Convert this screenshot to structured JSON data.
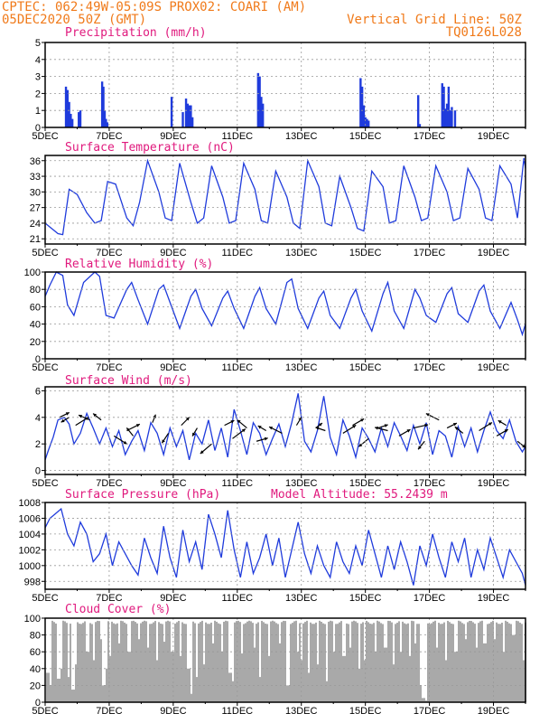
{
  "header": {
    "line1": "CPTEC:   062:49W-05:09S   PROX02: COARI (AM)",
    "line2_left": "05DEC2020 50Z (GMT)",
    "line2_right": "Vertical Grid Line: 50Z",
    "line3_right": "TQ0126L028"
  },
  "x_ticks": [
    "5DEC",
    "7DEC",
    "9DEC",
    "11DEC",
    "13DEC",
    "15DEC",
    "17DEC",
    "19DEC"
  ],
  "colors": {
    "header": "#f07a1a",
    "title": "#e0197d",
    "series": "#1f3bdc",
    "cloud": "#a9a9a9"
  },
  "chart_data": [
    {
      "type": "bar",
      "title": "Precipitation (mm/h)",
      "ylim": [
        0,
        5
      ],
      "yticks": [
        0,
        1,
        2,
        3,
        4,
        5
      ],
      "xlim": [
        5,
        20
      ],
      "x": [
        5.65,
        5.7,
        5.75,
        5.8,
        5.85,
        6.05,
        6.1,
        6.78,
        6.82,
        6.86,
        6.9,
        6.94,
        8.95,
        9.3,
        9.4,
        9.45,
        9.5,
        9.55,
        9.6,
        11.65,
        11.7,
        11.75,
        11.8,
        14.85,
        14.9,
        14.95,
        15.0,
        15.05,
        15.1,
        16.65,
        16.7,
        17.4,
        17.45,
        17.5,
        17.55,
        17.6,
        17.65,
        17.7,
        17.8
      ],
      "values": [
        2.4,
        2.2,
        1.5,
        0.8,
        0.5,
        0.9,
        1.0,
        2.7,
        2.4,
        1.0,
        0.5,
        0.3,
        1.8,
        0.9,
        1.7,
        1.4,
        1.3,
        1.3,
        0.6,
        3.2,
        3.0,
        1.8,
        1.4,
        2.9,
        2.4,
        1.3,
        0.6,
        0.5,
        0.4,
        1.9,
        0.2,
        2.6,
        2.4,
        1.1,
        1.4,
        2.4,
        1.0,
        1.2,
        1.0
      ],
      "grid": true
    },
    {
      "type": "line",
      "title": "Surface Temperature (nC)",
      "ylim": [
        20,
        37
      ],
      "yticks": [
        21,
        24,
        27,
        30,
        33,
        36
      ],
      "xlim": [
        5,
        20
      ],
      "x": [
        5.0,
        5.2,
        5.4,
        5.55,
        5.75,
        6.0,
        6.3,
        6.55,
        6.75,
        6.95,
        7.2,
        7.55,
        7.75,
        7.95,
        8.2,
        8.55,
        8.75,
        8.95,
        9.2,
        9.55,
        9.75,
        9.95,
        10.2,
        10.55,
        10.75,
        10.95,
        11.2,
        11.55,
        11.75,
        11.95,
        12.2,
        12.55,
        12.75,
        12.95,
        13.2,
        13.55,
        13.75,
        13.95,
        14.2,
        14.55,
        14.75,
        14.95,
        15.2,
        15.55,
        15.75,
        15.95,
        16.2,
        16.55,
        16.75,
        16.95,
        17.2,
        17.55,
        17.75,
        17.95,
        18.2,
        18.55,
        18.75,
        18.95,
        19.2,
        19.55,
        19.75,
        19.95,
        20.0
      ],
      "values": [
        24,
        23,
        22,
        21.8,
        30.5,
        29.5,
        26,
        24,
        24.5,
        32,
        31.5,
        25,
        23.5,
        28,
        36,
        30,
        25,
        24.5,
        35.5,
        28,
        24,
        25,
        35,
        29,
        24,
        24.5,
        35.5,
        30.5,
        24.5,
        24,
        34,
        29,
        24,
        23,
        36,
        31,
        24,
        23.5,
        33,
        27,
        23,
        22.5,
        34,
        31,
        24,
        24.5,
        35,
        29,
        24.5,
        25,
        35,
        30,
        24.5,
        25,
        34.5,
        30.5,
        25,
        24.5,
        35,
        31.5,
        25,
        36.5,
        34.5
      ],
      "grid": true
    },
    {
      "type": "line",
      "title": "Relative Humidity (%)",
      "ylim": [
        0,
        100
      ],
      "yticks": [
        0,
        20,
        40,
        60,
        80,
        100
      ],
      "xlim": [
        5,
        20
      ],
      "x": [
        5.0,
        5.15,
        5.35,
        5.55,
        5.7,
        5.9,
        6.2,
        6.55,
        6.7,
        6.9,
        7.15,
        7.55,
        7.7,
        7.9,
        8.2,
        8.55,
        8.7,
        8.9,
        9.2,
        9.55,
        9.7,
        9.9,
        10.2,
        10.55,
        10.7,
        10.9,
        11.2,
        11.55,
        11.7,
        11.9,
        12.2,
        12.55,
        12.7,
        12.9,
        13.2,
        13.55,
        13.7,
        13.9,
        14.2,
        14.55,
        14.7,
        14.9,
        15.2,
        15.55,
        15.7,
        15.9,
        16.2,
        16.55,
        16.7,
        16.9,
        17.2,
        17.55,
        17.7,
        17.9,
        18.2,
        18.55,
        18.7,
        18.9,
        19.2,
        19.55,
        19.75,
        19.9,
        20.0
      ],
      "values": [
        72,
        85,
        100,
        96,
        62,
        50,
        88,
        100,
        95,
        50,
        47,
        80,
        88,
        68,
        40,
        80,
        85,
        65,
        35,
        72,
        80,
        58,
        38,
        70,
        78,
        58,
        35,
        72,
        82,
        58,
        40,
        88,
        92,
        58,
        35,
        70,
        78,
        50,
        35,
        70,
        80,
        55,
        32,
        75,
        88,
        55,
        35,
        80,
        70,
        50,
        42,
        75,
        82,
        52,
        42,
        78,
        85,
        55,
        35,
        65,
        45,
        28,
        40
      ],
      "grid": true
    },
    {
      "type": "line",
      "title": "Surface Wind (m/s)",
      "ylim": [
        -0.3,
        6.3
      ],
      "yticks": [
        0,
        2,
        4,
        6
      ],
      "xlim": [
        5,
        20
      ],
      "x": [
        5.0,
        5.1,
        5.25,
        5.4,
        5.6,
        5.75,
        5.9,
        6.1,
        6.3,
        6.5,
        6.7,
        6.9,
        7.1,
        7.3,
        7.5,
        7.7,
        7.9,
        8.1,
        8.3,
        8.5,
        8.7,
        8.9,
        9.1,
        9.3,
        9.5,
        9.7,
        9.9,
        10.1,
        10.3,
        10.5,
        10.7,
        10.9,
        11.1,
        11.3,
        11.5,
        11.7,
        11.9,
        12.1,
        12.3,
        12.5,
        12.7,
        12.9,
        13.1,
        13.3,
        13.5,
        13.7,
        13.9,
        14.1,
        14.3,
        14.5,
        14.7,
        14.9,
        15.1,
        15.3,
        15.5,
        15.7,
        15.9,
        16.1,
        16.3,
        16.5,
        16.7,
        16.9,
        17.1,
        17.3,
        17.5,
        17.7,
        17.9,
        18.1,
        18.3,
        18.5,
        18.7,
        18.9,
        19.1,
        19.3,
        19.5,
        19.7,
        19.9,
        20.0
      ],
      "values": [
        0.8,
        1.5,
        2.5,
        3.8,
        4.0,
        3.5,
        2.0,
        2.8,
        4.3,
        3.2,
        2.0,
        3.2,
        1.8,
        3.0,
        1.2,
        2.2,
        3.0,
        1.5,
        3.6,
        2.8,
        1.2,
        3.2,
        1.8,
        3.0,
        0.8,
        2.8,
        2.0,
        3.8,
        1.5,
        3.2,
        1.0,
        4.6,
        3.0,
        1.2,
        3.6,
        2.8,
        1.2,
        2.4,
        3.5,
        1.8,
        3.6,
        5.8,
        2.2,
        1.4,
        3.0,
        5.6,
        2.5,
        1.2,
        3.8,
        2.6,
        1.0,
        3.2,
        2.4,
        1.4,
        3.2,
        1.8,
        3.6,
        2.6,
        1.5,
        3.4,
        2.0,
        3.6,
        1.2,
        3.0,
        2.6,
        1.0,
        3.3,
        1.8,
        3.2,
        1.4,
        3.0,
        4.4,
        3.0,
        2.4,
        3.8,
        2.2,
        1.4,
        1.8
      ],
      "arrows_x": [
        5.45,
        5.75,
        5.95,
        6.4,
        6.75,
        7.15,
        7.55,
        7.75,
        8.35,
        8.85,
        9.25,
        9.75,
        10.2,
        10.6,
        10.85,
        11.3,
        11.6,
        11.9,
        12.4,
        12.85,
        13.45,
        13.75,
        14.3,
        14.6,
        15.1,
        15.4,
        15.7,
        16.05,
        16.5,
        16.85,
        17.3,
        17.55,
        18.05,
        18.55,
        19.1,
        19.4,
        19.75
      ],
      "arrows_y": [
        4.0,
        4.0,
        3.4,
        3.8,
        3.8,
        2.6,
        3.0,
        2.6,
        3.6,
        2.8,
        3.4,
        3.2,
        2.0,
        3.4,
        2.4,
        3.2,
        2.2,
        3.0,
        2.8,
        3.4,
        3.2,
        3.0,
        2.8,
        3.4,
        2.4,
        3.2,
        3.0,
        2.6,
        3.2,
        2.2,
        3.8,
        3.2,
        2.8,
        3.0,
        2.6,
        3.4,
        2.2
      ],
      "arrows_u": [
        0.6,
        -0.5,
        0.8,
        -0.7,
        -0.5,
        0.8,
        0.8,
        -0.4,
        0.2,
        -0.4,
        0.5,
        -0.3,
        -0.7,
        0.6,
        0.8,
        -0.6,
        0.7,
        -0.5,
        -0.8,
        0.3,
        0.4,
        -0.6,
        0.8,
        0.7,
        -0.6,
        0.6,
        -0.8,
        0.7,
        0.9,
        -0.4,
        -0.8,
        0.6,
        -0.5,
        0.8,
        0.7,
        -0.5,
        0.5
      ],
      "arrows_v": [
        0.3,
        -0.3,
        0.5,
        0.3,
        0.4,
        -0.5,
        0.4,
        0.5,
        0.5,
        -0.6,
        0.5,
        -0.5,
        -0.6,
        0.3,
        0.6,
        0.5,
        0.2,
        0.3,
        0.4,
        0.5,
        0.3,
        0.2,
        0.5,
        0.4,
        -0.5,
        0.2,
        0.2,
        0.4,
        0.2,
        -0.5,
        0.4,
        0.3,
        0.4,
        0.5,
        0.4,
        0.3,
        -0.4
      ],
      "grid": true
    },
    {
      "type": "line",
      "title": "Surface Pressure (hPa)",
      "annotation": "Model Altitude: 55.2439 m",
      "ylim": [
        997,
        1008
      ],
      "yticks": [
        998,
        1000,
        1002,
        1004,
        1006,
        1008
      ],
      "xlim": [
        5,
        20
      ],
      "x": [
        5.0,
        5.15,
        5.3,
        5.5,
        5.7,
        5.9,
        6.1,
        6.3,
        6.5,
        6.7,
        6.9,
        7.1,
        7.3,
        7.5,
        7.7,
        7.9,
        8.1,
        8.3,
        8.5,
        8.7,
        8.9,
        9.1,
        9.3,
        9.5,
        9.7,
        9.9,
        10.1,
        10.3,
        10.5,
        10.7,
        10.9,
        11.1,
        11.3,
        11.5,
        11.7,
        11.9,
        12.1,
        12.3,
        12.5,
        12.7,
        12.9,
        13.1,
        13.3,
        13.5,
        13.7,
        13.9,
        14.1,
        14.3,
        14.5,
        14.7,
        14.9,
        15.1,
        15.3,
        15.5,
        15.7,
        15.9,
        16.1,
        16.3,
        16.5,
        16.7,
        16.9,
        17.1,
        17.3,
        17.5,
        17.7,
        17.9,
        18.1,
        18.3,
        18.5,
        18.7,
        18.9,
        19.1,
        19.3,
        19.5,
        19.7,
        19.9,
        20.0
      ],
      "values": [
        1004.8,
        1006.0,
        1006.5,
        1007.2,
        1004.0,
        1002.5,
        1005.5,
        1004.0,
        1000.5,
        1001.5,
        1004.0,
        1000.0,
        1003.0,
        1001.5,
        1000.0,
        998.8,
        1003.5,
        1001.0,
        999.0,
        1005.0,
        1001.0,
        998.5,
        1004.5,
        1000.5,
        1003.0,
        999.5,
        1006.5,
        1004.0,
        1001.0,
        1007.0,
        1002.0,
        998.5,
        1003.0,
        999.0,
        1001.0,
        1004.0,
        1000.0,
        1003.5,
        998.5,
        1002.0,
        1005.5,
        1001.5,
        999.0,
        1002.5,
        1000.0,
        998.5,
        1003.0,
        1000.5,
        999.0,
        1002.5,
        1000.0,
        1004.5,
        1001.5,
        998.5,
        1002.5,
        999.5,
        1003.0,
        1000.5,
        997.5,
        1002.5,
        1000.0,
        1004.0,
        1001.0,
        998.5,
        1003.0,
        1000.5,
        1003.5,
        998.5,
        1002.0,
        999.5,
        1003.5,
        1001.0,
        998.5,
        1002.0,
        1000.5,
        999.0,
        997.5
      ],
      "grid": true
    },
    {
      "type": "bar",
      "title": "Cloud Cover (%)",
      "ylim": [
        0,
        100
      ],
      "yticks": [
        0,
        20,
        40,
        60,
        80,
        100
      ],
      "xlim": [
        5,
        20
      ],
      "base_value": 95,
      "dips_x": [
        5.05,
        5.12,
        5.4,
        5.45,
        5.7,
        5.85,
        5.95,
        6.3,
        6.5,
        6.7,
        6.8,
        6.9,
        7.0,
        7.3,
        7.6,
        7.9,
        8.2,
        8.45,
        8.7,
        8.95,
        9.2,
        9.45,
        9.55,
        9.7,
        9.95,
        10.2,
        10.5,
        10.75,
        10.85,
        11.1,
        11.5,
        11.7,
        11.95,
        12.3,
        12.55,
        12.85,
        13.0,
        13.2,
        13.5,
        13.75,
        14.0,
        14.3,
        14.5,
        14.8,
        14.95,
        15.3,
        15.6,
        15.85,
        16.1,
        16.35,
        16.55,
        16.7,
        16.78,
        16.85,
        17.2,
        17.5,
        17.8,
        18.1,
        18.45,
        18.7,
        19.0,
        19.3,
        19.6,
        19.9
      ],
      "dips_value": [
        35,
        20,
        28,
        40,
        30,
        15,
        45,
        60,
        50,
        75,
        20,
        40,
        55,
        70,
        60,
        75,
        65,
        50,
        72,
        60,
        55,
        40,
        10,
        30,
        45,
        70,
        60,
        35,
        25,
        58,
        65,
        30,
        55,
        70,
        20,
        60,
        50,
        35,
        45,
        25,
        60,
        55,
        65,
        40,
        50,
        60,
        65,
        45,
        60,
        55,
        70,
        20,
        5,
        2,
        65,
        50,
        60,
        75,
        65,
        70,
        75,
        60,
        80,
        50
      ],
      "grid": true
    }
  ]
}
